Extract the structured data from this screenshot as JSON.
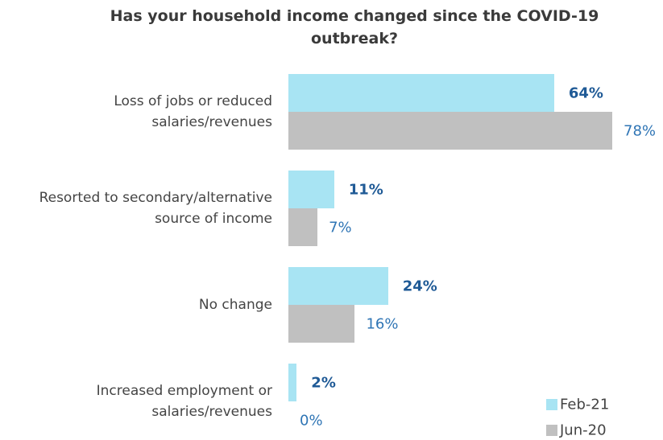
{
  "chart_data": {
    "type": "hbar",
    "title": "Has your household income changed since the COVID-19 outbreak?",
    "categories": [
      "Loss of jobs or reduced salaries/revenues",
      "Resorted to secondary/alternative source of income",
      "No change",
      "Increased employment or salaries/revenues"
    ],
    "series": [
      {
        "name": "Feb-21",
        "color": "#a8e4f3",
        "values": [
          64,
          11,
          24,
          2
        ],
        "value_labels": [
          "64%",
          "11%",
          "24%",
          "2%"
        ]
      },
      {
        "name": "Jun-20",
        "color": "#c0c0c0",
        "values": [
          78,
          7,
          16,
          0
        ],
        "value_labels": [
          "78%",
          "7%",
          "16%",
          "0%"
        ]
      }
    ],
    "legend": "bottom-right"
  }
}
